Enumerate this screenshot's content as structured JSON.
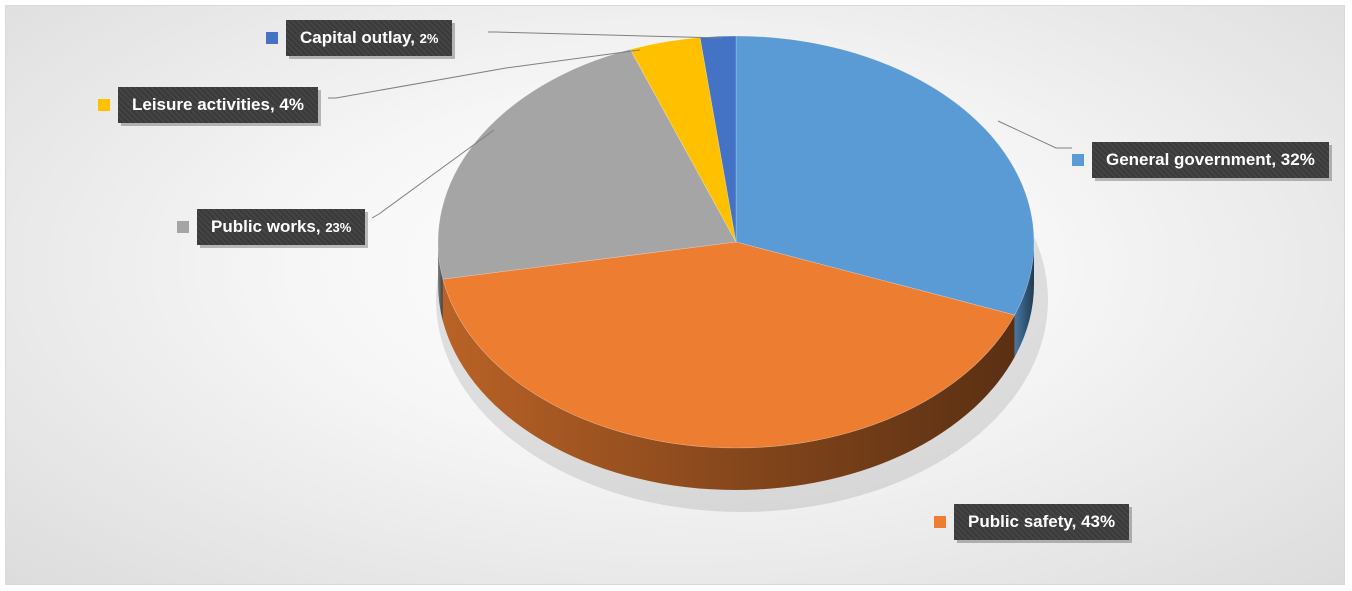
{
  "chart_data": {
    "type": "pie",
    "style": "3d",
    "title": "",
    "slices": [
      {
        "label": "General government",
        "value": 32,
        "display": "General government, 32%",
        "color": "#5b9bd5"
      },
      {
        "label": "Public safety",
        "value": 43,
        "display": "Public safety, 43%",
        "color": "#ed7d31"
      },
      {
        "label": "Public works",
        "value": 23,
        "display": "Public works, 23%",
        "color": "#a5a5a5"
      },
      {
        "label": "Leisure activities",
        "value": 4,
        "display": "Leisure activities, 4%",
        "color": "#ffc000"
      },
      {
        "label": "Capital outlay",
        "value": 2,
        "display": "Capital outlay, 2%",
        "color": "#4472c4"
      }
    ],
    "legend": "none",
    "data_labels": "outside with leader lines"
  },
  "labels": {
    "general_government": {
      "name": "General government, ",
      "pct": "32%"
    },
    "public_safety": {
      "name": "Public safety, ",
      "pct": "43%"
    },
    "public_works": {
      "name": "Public works, ",
      "pct": "23%"
    },
    "leisure": {
      "name": "Leisure activities, ",
      "pct": "4%"
    },
    "capital": {
      "name": "Capital outlay, ",
      "pct": "2%"
    }
  }
}
